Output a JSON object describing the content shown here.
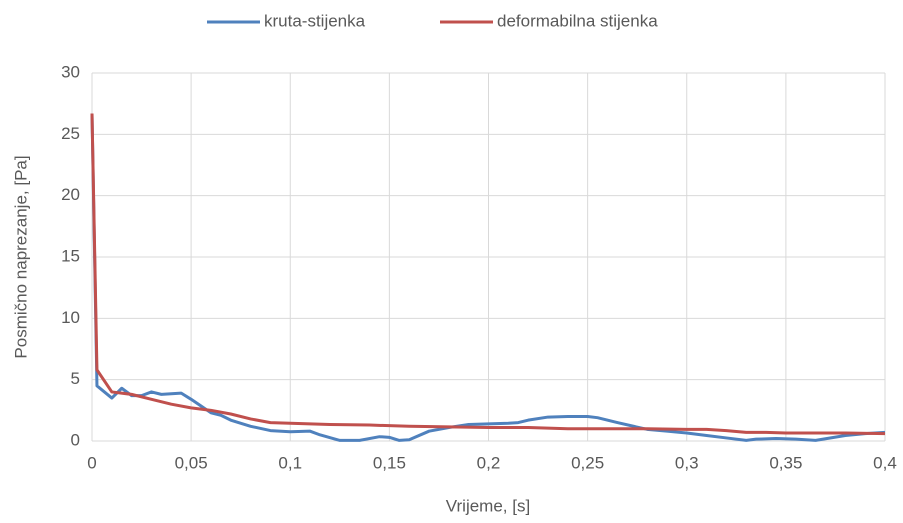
{
  "chart_data": {
    "type": "line",
    "xlabel": "Vrijeme, [s]",
    "ylabel": "Posmično naprezanje, [Pa]",
    "xlim": [
      0,
      0.4
    ],
    "ylim": [
      0,
      30
    ],
    "xticks": [
      0,
      {
        "value": 0.05,
        "label": "0,05"
      },
      {
        "value": 0.1,
        "label": "0,1"
      },
      {
        "value": 0.15,
        "label": "0,15"
      },
      {
        "value": 0.2,
        "label": "0,2"
      },
      {
        "value": 0.25,
        "label": "0,25"
      },
      {
        "value": 0.3,
        "label": "0,3"
      },
      {
        "value": 0.35,
        "label": "0,35"
      },
      {
        "value": 0.4,
        "label": "0,4"
      }
    ],
    "yticks": [
      0,
      5,
      10,
      15,
      20,
      25,
      30
    ],
    "grid": true,
    "legend": "top",
    "series": [
      {
        "name": "kruta-stijenka",
        "color": "#4f81bd",
        "x": [
          0,
          0.0025,
          0.01,
          0.015,
          0.02,
          0.025,
          0.03,
          0.035,
          0.045,
          0.05,
          0.06,
          0.065,
          0.07,
          0.08,
          0.09,
          0.1,
          0.11,
          0.115,
          0.125,
          0.135,
          0.145,
          0.15,
          0.155,
          0.16,
          0.17,
          0.18,
          0.19,
          0.2,
          0.21,
          0.215,
          0.22,
          0.23,
          0.24,
          0.25,
          0.255,
          0.265,
          0.28,
          0.29,
          0.3,
          0.31,
          0.32,
          0.33,
          0.335,
          0.345,
          0.355,
          0.365,
          0.38,
          0.39,
          0.4
        ],
        "values": [
          26.7,
          4.5,
          3.5,
          4.3,
          3.7,
          3.7,
          4.0,
          3.8,
          3.9,
          3.4,
          2.3,
          2.1,
          1.7,
          1.2,
          0.85,
          0.75,
          0.8,
          0.5,
          0.05,
          0.05,
          0.35,
          0.3,
          0.05,
          0.1,
          0.8,
          1.1,
          1.35,
          1.4,
          1.45,
          1.5,
          1.7,
          1.95,
          2.0,
          2.0,
          1.9,
          1.5,
          0.95,
          0.8,
          0.65,
          0.45,
          0.25,
          0.05,
          0.15,
          0.2,
          0.15,
          0.05,
          0.45,
          0.6,
          0.7
        ]
      },
      {
        "name": "deformabilna stijenka",
        "color": "#c0504d",
        "x": [
          0,
          0.0025,
          0.01,
          0.02,
          0.03,
          0.04,
          0.05,
          0.06,
          0.07,
          0.08,
          0.09,
          0.1,
          0.12,
          0.14,
          0.16,
          0.18,
          0.2,
          0.22,
          0.24,
          0.26,
          0.28,
          0.3,
          0.31,
          0.32,
          0.33,
          0.34,
          0.35,
          0.38,
          0.4
        ],
        "values": [
          26.7,
          5.8,
          4.0,
          3.8,
          3.4,
          3.0,
          2.7,
          2.5,
          2.2,
          1.8,
          1.5,
          1.45,
          1.35,
          1.3,
          1.2,
          1.15,
          1.1,
          1.1,
          1.0,
          1.0,
          1.0,
          0.95,
          0.95,
          0.85,
          0.7,
          0.7,
          0.65,
          0.65,
          0.6
        ]
      }
    ]
  }
}
